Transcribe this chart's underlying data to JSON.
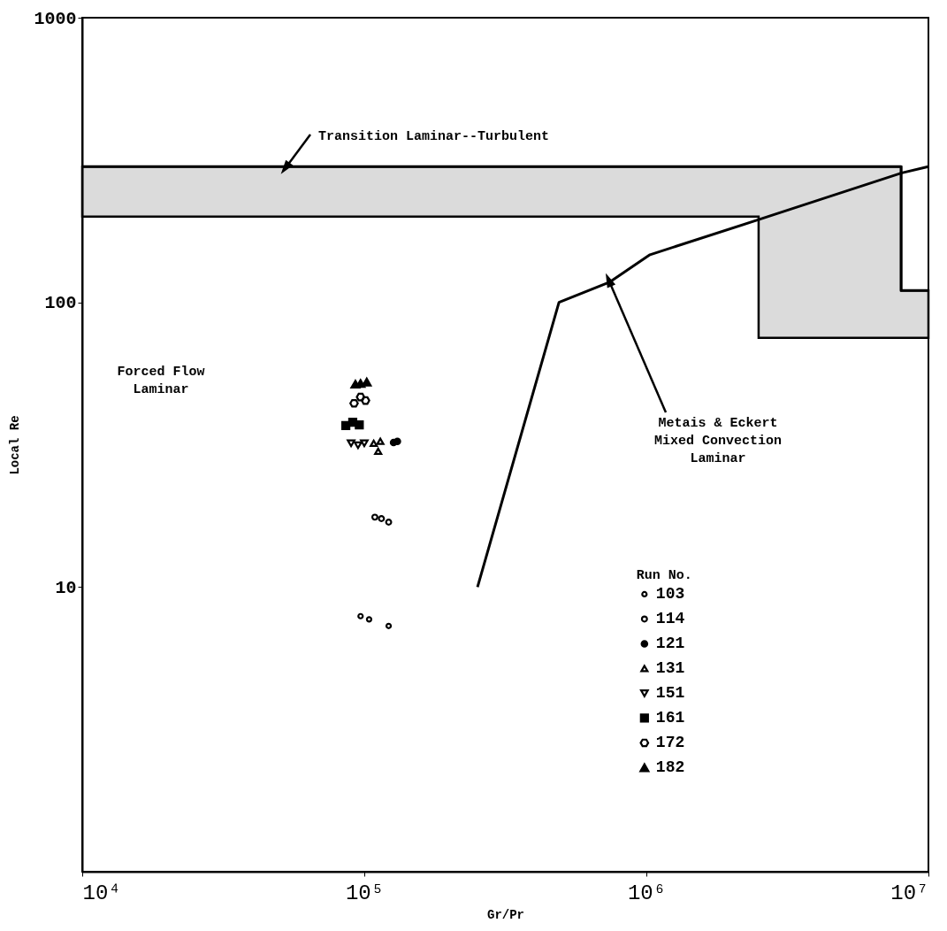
{
  "chart_data": {
    "type": "scatter",
    "xlabel": "Gr/Pr",
    "ylabel": "Local Re",
    "legend_title": "Run No.",
    "legend": "bottom right",
    "log": "xy",
    "grid": false,
    "xlim": [
      10000,
      10000000
    ],
    "xticks": [
      {
        "value": 10000,
        "label": "10⁴"
      },
      {
        "value": 100000,
        "label": "10⁵"
      },
      {
        "value": 1000000,
        "label": "10⁶"
      },
      {
        "value": 10000000,
        "label": "10⁷"
      }
    ],
    "ylim": [
      1,
      1000
    ],
    "yticks": [
      10,
      100,
      1000
    ],
    "series": [
      {
        "type": "line",
        "color": "#000000",
        "x": [
          10000,
          2500000,
          2500000,
          8000000,
          8000000,
          10000000
        ],
        "values": [
          300,
          300,
          300,
          300,
          110,
          110
        ],
        "upper": [
          300,
          300,
          300,
          300,
          110,
          110
        ],
        "lower": [
          200,
          200,
          75,
          75,
          75,
          75
        ]
      },
      {
        "type": "line",
        "color": "#000000",
        "line_style": "solid",
        "x": [
          252000,
          490000,
          743000,
          1030000,
          2530000,
          8050000,
          10000000
        ],
        "values": [
          10,
          100,
          118,
          147,
          196,
          285,
          300
        ]
      },
      {
        "name": "103",
        "color": "#000000",
        "marker": "circle",
        "x": [
          97000,
          104000,
          122000
        ],
        "values": [
          7.9,
          7.7,
          7.3
        ]
      },
      {
        "name": "114",
        "color": "#000000",
        "marker": "circle",
        "x": [
          109000,
          115000,
          122000
        ],
        "values": [
          17.6,
          17.4,
          16.9
        ]
      },
      {
        "name": "121",
        "color": "#000000",
        "marker": "circle",
        "x": [
          127000,
          131000
        ],
        "values": [
          32.2,
          32.5
        ]
      },
      {
        "name": "131",
        "color": "#000000",
        "marker": "triangle",
        "x": [
          108000,
          114000,
          112000
        ],
        "values": [
          32,
          32.5,
          30
        ]
      },
      {
        "name": "151",
        "color": "#000000",
        "x": [
          89800,
          95000,
          100000
        ],
        "values": [
          32,
          31.5,
          32
        ]
      },
      {
        "name": "161",
        "color": "#000000",
        "marker": "square",
        "x": [
          86000,
          91000,
          96000
        ],
        "values": [
          36.9,
          37.9,
          37.1
        ]
      },
      {
        "name": "172",
        "color": "#000000",
        "x": [
          92000,
          97000,
          101000
        ],
        "values": [
          44.2,
          46.5,
          45.2
        ]
      },
      {
        "name": "182",
        "color": "#000000",
        "marker": "triangle",
        "x": [
          93000,
          97000,
          102000
        ],
        "values": [
          51.6,
          51.9,
          52.5
        ]
      }
    ],
    "annotations": [
      {
        "text": "Transition Laminar--Turbulent",
        "x": 53000,
        "y": 300
      },
      "Forced Flow\nLaminar",
      {
        "text": "Metais & Eckert\nMixed Convection\nLaminar",
        "x": 740000,
        "y": 118
      }
    ]
  }
}
